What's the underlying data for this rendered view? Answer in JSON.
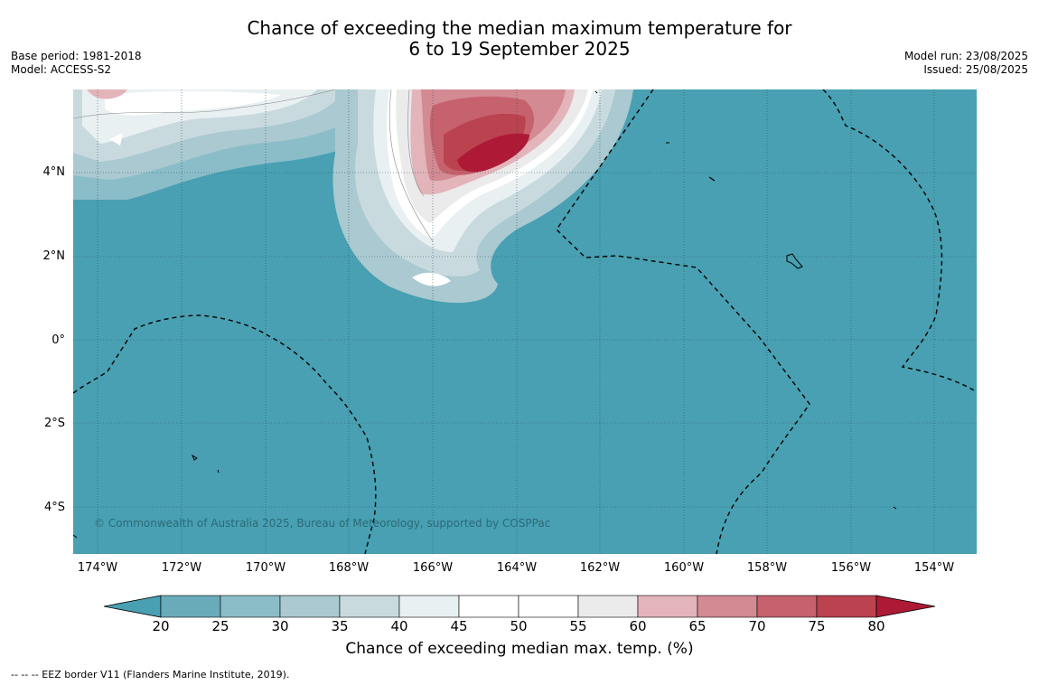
{
  "title": {
    "line1": "Chance of exceeding the median maximum temperature for",
    "line2": "6 to 19 September 2025"
  },
  "meta_left": {
    "base_period": "Base period: 1981-2018",
    "model": "Model: ACCESS-S2"
  },
  "meta_right": {
    "model_run": "Model run: 23/08/2025",
    "issued": "Issued: 25/08/2025"
  },
  "map": {
    "background_color": "#48a0b2",
    "lat_labels": [
      "4°N",
      "2°N",
      "0°",
      "2°S",
      "4°S"
    ],
    "lon_labels": [
      "174°W",
      "172°W",
      "170°W",
      "168°W",
      "166°W",
      "164°W",
      "162°W",
      "160°W",
      "158°W",
      "156°W",
      "154°W"
    ],
    "copyright": "© Commonwealth of Australia 2025, Bureau of Meteorology, supported by COSPPac"
  },
  "legend": {
    "ticks": [
      "20",
      "25",
      "30",
      "35",
      "40",
      "45",
      "50",
      "55",
      "60",
      "65",
      "70",
      "75",
      "80"
    ],
    "colors": [
      "#48a0b2",
      "#6aabba",
      "#8bbdc8",
      "#aac9d0",
      "#c9dade",
      "#e9f0f2",
      "#ffffff",
      "#ffffff",
      "#ebebeb",
      "#e3b4ba",
      "#d38a93",
      "#c5626d",
      "#bb424f",
      "#ae1a35"
    ],
    "label": "Chance of exceeding median max. temp. (%)"
  },
  "eez_note": "--  --  -- EEZ border V11 (Flanders Marine Institute, 2019)."
}
